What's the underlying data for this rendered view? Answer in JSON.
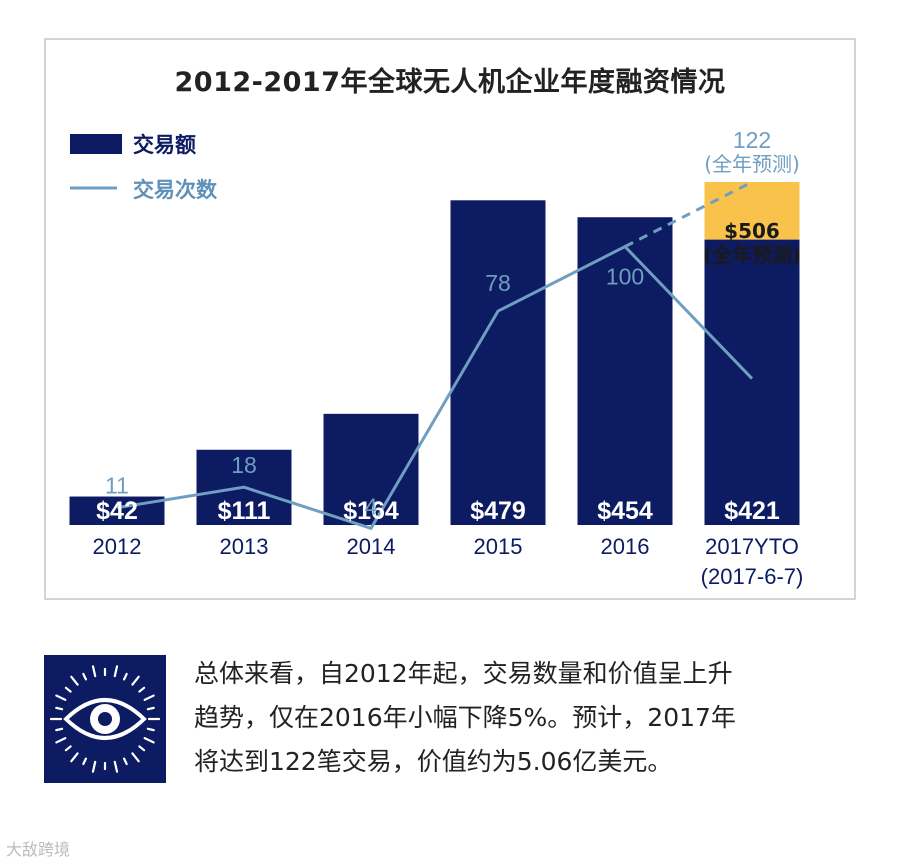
{
  "chart_data": {
    "type": "bar",
    "title": "2012-2017年全球无人机企业年度融资情况",
    "categories": [
      "2012",
      "2013",
      "2014",
      "2015",
      "2016",
      "2017YTO"
    ],
    "category_sublabels": [
      "",
      "",
      "",
      "",
      "",
      "(2017-6-7)"
    ],
    "series": [
      {
        "name": "交易额",
        "type": "bar",
        "values": [
          42,
          111,
          164,
          479,
          454,
          421
        ],
        "data_labels": [
          "$42",
          "$111",
          "$164",
          "$479",
          "$454",
          "$421"
        ]
      },
      {
        "name": "交易次数",
        "type": "line",
        "values": [
          11,
          18,
          4,
          78,
          100,
          55
        ],
        "data_labels": [
          "11",
          "18",
          "4",
          "78",
          "100",
          ""
        ]
      }
    ],
    "projection": {
      "bar_total": 506,
      "bar_label": "$506",
      "bar_note": "(全年预测)",
      "count_value": 122,
      "count_label": "122",
      "count_note": "(全年预测)"
    },
    "ylim": [
      0,
      506
    ],
    "legend_position": "top-left",
    "colors": {
      "bar": "#0d1b63",
      "projection_bar": "#f9c24b",
      "line": "#6f9ec0"
    }
  },
  "note": {
    "lines": [
      "总体来看，自2012年起，交易数量和价值呈上升",
      "趋势，仅在2016年小幅下降5%。预计，2017年",
      "将达到122笔交易，价值约为5.06亿美元。"
    ]
  },
  "watermark": "大敌跨境",
  "icons": {
    "insight": "eye-icon"
  }
}
